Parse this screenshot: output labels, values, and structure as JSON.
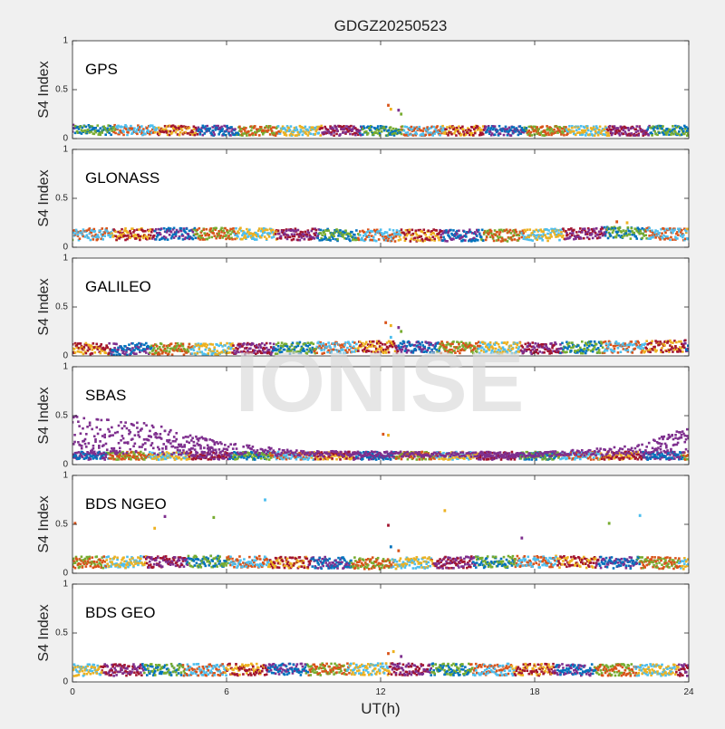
{
  "title": "GDGZ20250523",
  "watermark": "IONISE",
  "colors": {
    "figure_bg": "#f0f0f0",
    "axes_bg": "#ffffff",
    "axis_line": "#262626",
    "series": [
      "#0072BD",
      "#D95319",
      "#EDB120",
      "#7E2F8E",
      "#77AC30",
      "#4DBEEE",
      "#A2142F"
    ]
  },
  "chart_data": [
    {
      "type": "scatter",
      "panel_label": "GPS",
      "ylabel": "S4 Index",
      "xlabel": "",
      "xlim": [
        0,
        24
      ],
      "ylim": [
        0,
        1
      ],
      "xticks": [],
      "yticks": [
        0,
        0.5,
        1
      ],
      "ytick_labels": [
        "0",
        "0.5",
        "1"
      ],
      "baseline": [
        {
          "x": 0,
          "y": 0.09
        },
        {
          "x": 6,
          "y": 0.08
        },
        {
          "x": 12,
          "y": 0.08
        },
        {
          "x": 18,
          "y": 0.08
        },
        {
          "x": 24,
          "y": 0.08
        }
      ],
      "spread": 0.05,
      "outliers": [
        {
          "x": 12.3,
          "y": 0.34
        },
        {
          "x": 12.4,
          "y": 0.3
        },
        {
          "x": 12.7,
          "y": 0.29
        },
        {
          "x": 12.8,
          "y": 0.25
        }
      ]
    },
    {
      "type": "scatter",
      "panel_label": "GLONASS",
      "ylabel": "S4 Index",
      "xlabel": "",
      "xlim": [
        0,
        24
      ],
      "ylim": [
        0,
        1
      ],
      "xticks": [],
      "yticks": [
        0,
        0.5,
        1
      ],
      "ytick_labels": [
        "0",
        "0.5",
        "1"
      ],
      "baseline": [
        {
          "x": 0,
          "y": 0.13
        },
        {
          "x": 6,
          "y": 0.14
        },
        {
          "x": 12,
          "y": 0.12
        },
        {
          "x": 18,
          "y": 0.12
        },
        {
          "x": 21,
          "y": 0.15
        },
        {
          "x": 24,
          "y": 0.13
        }
      ],
      "spread": 0.06,
      "outliers": [
        {
          "x": 21.2,
          "y": 0.26
        },
        {
          "x": 21.6,
          "y": 0.25
        }
      ]
    },
    {
      "type": "scatter",
      "panel_label": "GALILEO",
      "ylabel": "S4 Index",
      "xlabel": "",
      "xlim": [
        0,
        24
      ],
      "ylim": [
        0,
        1
      ],
      "xticks": [],
      "yticks": [
        0,
        0.5,
        1
      ],
      "ytick_labels": [
        "0",
        "0.5",
        "1"
      ],
      "baseline": [
        {
          "x": 0,
          "y": 0.07
        },
        {
          "x": 6,
          "y": 0.07
        },
        {
          "x": 12,
          "y": 0.09
        },
        {
          "x": 18,
          "y": 0.08
        },
        {
          "x": 24,
          "y": 0.1
        }
      ],
      "spread": 0.06,
      "outliers": [
        {
          "x": 12.2,
          "y": 0.34
        },
        {
          "x": 12.4,
          "y": 0.31
        },
        {
          "x": 12.7,
          "y": 0.29
        },
        {
          "x": 12.8,
          "y": 0.25
        },
        {
          "x": 12.4,
          "y": 0.19
        }
      ]
    },
    {
      "type": "scatter",
      "panel_label": "SBAS",
      "ylabel": "S4 Index",
      "xlabel": "",
      "xlim": [
        0,
        24
      ],
      "ylim": [
        0,
        1
      ],
      "xticks": [],
      "yticks": [
        0,
        0.5,
        1
      ],
      "ytick_labels": [
        "0",
        "0.5",
        "1"
      ],
      "baseline": [
        {
          "x": 0,
          "y": 0.09
        },
        {
          "x": 12,
          "y": 0.09
        },
        {
          "x": 24,
          "y": 0.09
        }
      ],
      "spread": 0.04,
      "scatter_band": [
        {
          "x": 0,
          "y_min": 0.1,
          "y_max": 0.5
        },
        {
          "x": 3,
          "y_min": 0.1,
          "y_max": 0.42
        },
        {
          "x": 6,
          "y_min": 0.1,
          "y_max": 0.22
        },
        {
          "x": 9,
          "y_min": 0.08,
          "y_max": 0.14
        },
        {
          "x": 18,
          "y_min": 0.08,
          "y_max": 0.12
        },
        {
          "x": 22,
          "y_min": 0.1,
          "y_max": 0.2
        },
        {
          "x": 24,
          "y_min": 0.12,
          "y_max": 0.38
        }
      ],
      "outliers": [
        {
          "x": 12.1,
          "y": 0.31
        },
        {
          "x": 12.3,
          "y": 0.3
        }
      ]
    },
    {
      "type": "scatter",
      "panel_label": "BDS NGEO",
      "ylabel": "S4 Index",
      "xlabel": "",
      "xlim": [
        0,
        24
      ],
      "ylim": [
        0,
        1
      ],
      "xticks": [],
      "yticks": [
        0,
        0.5,
        1
      ],
      "ytick_labels": [
        "0",
        "0.5",
        "1"
      ],
      "baseline": [
        {
          "x": 0,
          "y": 0.11
        },
        {
          "x": 6,
          "y": 0.12
        },
        {
          "x": 12,
          "y": 0.1
        },
        {
          "x": 18,
          "y": 0.12
        },
        {
          "x": 24,
          "y": 0.1
        }
      ],
      "spread": 0.06,
      "outliers": [
        {
          "x": 0.1,
          "y": 0.51
        },
        {
          "x": 3.2,
          "y": 0.46
        },
        {
          "x": 3.6,
          "y": 0.58
        },
        {
          "x": 5.5,
          "y": 0.57
        },
        {
          "x": 7.5,
          "y": 0.75
        },
        {
          "x": 12.3,
          "y": 0.49
        },
        {
          "x": 12.4,
          "y": 0.27
        },
        {
          "x": 12.7,
          "y": 0.23
        },
        {
          "x": 14.5,
          "y": 0.64
        },
        {
          "x": 17.5,
          "y": 0.36
        },
        {
          "x": 20.9,
          "y": 0.51
        },
        {
          "x": 22.1,
          "y": 0.59
        }
      ]
    },
    {
      "type": "scatter",
      "panel_label": "BDS GEO",
      "ylabel": "S4 Index",
      "xlabel": "UT(h)",
      "xlim": [
        0,
        24
      ],
      "ylim": [
        0,
        1
      ],
      "xticks": [
        0,
        6,
        12,
        18,
        24
      ],
      "xtick_labels": [
        "0",
        "6",
        "12",
        "18",
        "24"
      ],
      "yticks": [
        0,
        0.5,
        1
      ],
      "ytick_labels": [
        "0",
        "0.5",
        "1"
      ],
      "baseline": [
        {
          "x": 0,
          "y": 0.12
        },
        {
          "x": 12,
          "y": 0.13
        },
        {
          "x": 24,
          "y": 0.12
        }
      ],
      "spread": 0.06,
      "outliers": [
        {
          "x": 12.3,
          "y": 0.29
        },
        {
          "x": 12.5,
          "y": 0.31
        },
        {
          "x": 12.8,
          "y": 0.26
        }
      ]
    }
  ]
}
